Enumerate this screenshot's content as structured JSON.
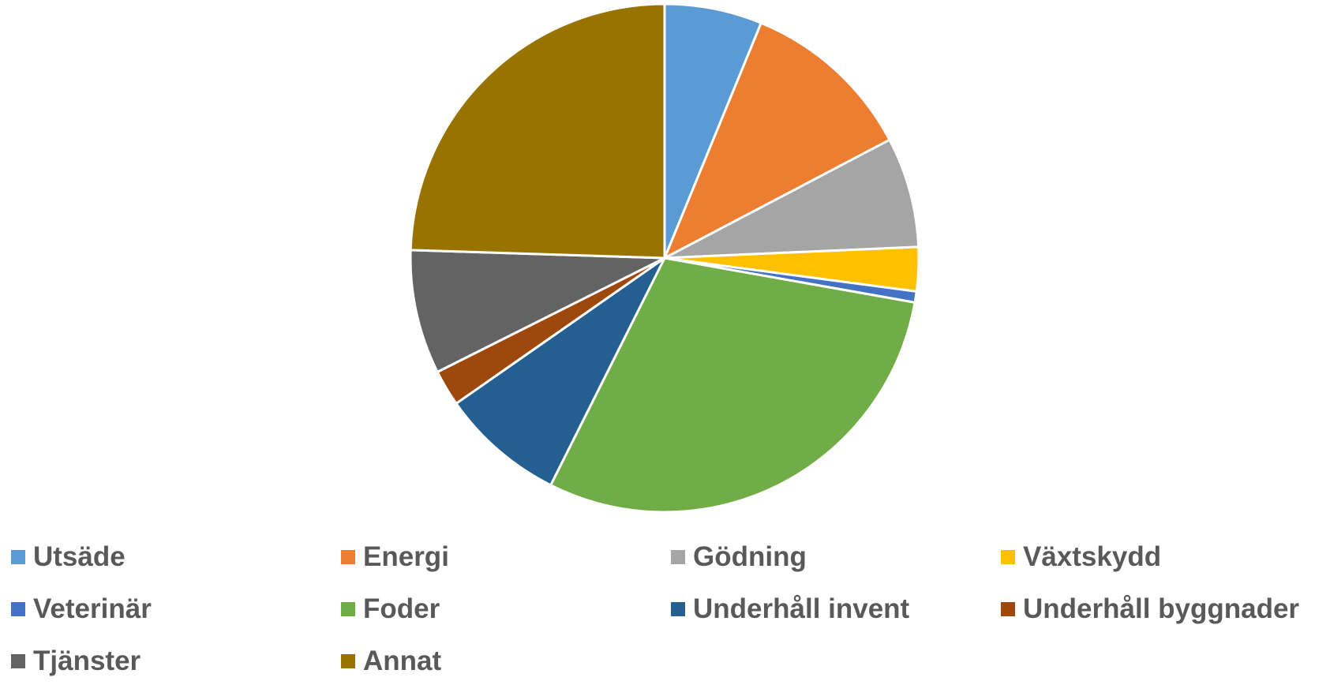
{
  "chart_data": {
    "type": "pie",
    "title": "",
    "start_angle_deg": 0,
    "direction": "clockwise",
    "legend_position": "bottom",
    "slices": [
      {
        "label": "Utsäde",
        "value": 6.2,
        "color": "#5B9BD5"
      },
      {
        "label": "Energi",
        "value": 11.1,
        "color": "#ED7D31"
      },
      {
        "label": "Gödning",
        "value": 7.0,
        "color": "#A5A5A5"
      },
      {
        "label": "Växtskydd",
        "value": 2.8,
        "color": "#FFC000"
      },
      {
        "label": "Veterinär",
        "value": 0.7,
        "color": "#4472C4"
      },
      {
        "label": "Foder",
        "value": 29.6,
        "color": "#70AD47"
      },
      {
        "label": "Underhåll invent",
        "value": 7.9,
        "color": "#255E91"
      },
      {
        "label": "Underhåll byggnader",
        "value": 2.3,
        "color": "#9E480E"
      },
      {
        "label": "Tjänster",
        "value": 7.9,
        "color": "#636363"
      },
      {
        "label": "Annat",
        "value": 24.5,
        "color": "#997300"
      }
    ]
  }
}
